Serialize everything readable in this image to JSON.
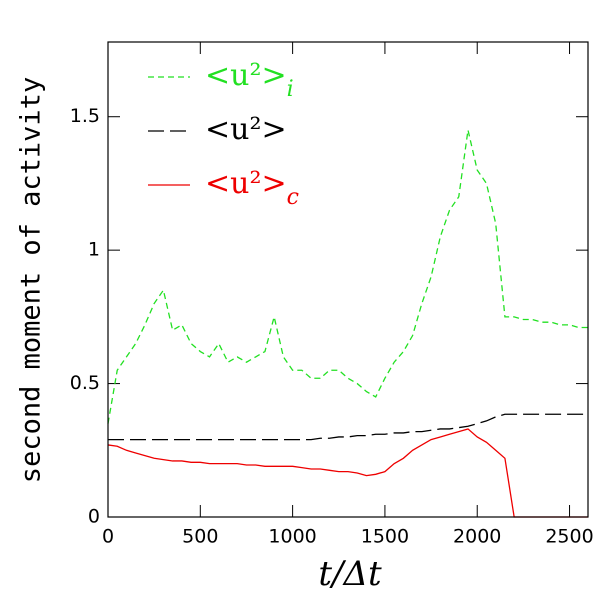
{
  "chart_data": {
    "type": "line",
    "x_label": "t/Δt",
    "y_label": "second moment of activity",
    "x": [
      0,
      50,
      100,
      150,
      200,
      250,
      300,
      350,
      400,
      450,
      500,
      550,
      600,
      650,
      700,
      750,
      800,
      850,
      900,
      950,
      1000,
      1050,
      1100,
      1150,
      1200,
      1250,
      1300,
      1350,
      1400,
      1450,
      1500,
      1550,
      1600,
      1650,
      1700,
      1750,
      1800,
      1850,
      1900,
      1950,
      2000,
      2050,
      2100,
      2150,
      2200,
      2250,
      2300,
      2350,
      2400,
      2450,
      2500,
      2550,
      2600
    ],
    "series": [
      {
        "name": "<u²>i",
        "color": "#22e022",
        "dash": "short",
        "values": [
          0.35,
          0.55,
          0.6,
          0.65,
          0.72,
          0.8,
          0.85,
          0.7,
          0.72,
          0.65,
          0.62,
          0.6,
          0.65,
          0.58,
          0.6,
          0.58,
          0.6,
          0.62,
          0.75,
          0.6,
          0.55,
          0.55,
          0.52,
          0.52,
          0.55,
          0.55,
          0.52,
          0.5,
          0.47,
          0.45,
          0.52,
          0.58,
          0.62,
          0.68,
          0.8,
          0.9,
          1.05,
          1.15,
          1.2,
          1.45,
          1.3,
          1.25,
          1.1,
          0.75,
          0.75,
          0.74,
          0.74,
          0.73,
          0.73,
          0.72,
          0.72,
          0.71,
          0.71
        ]
      },
      {
        "name": "<u²>",
        "color": "#000000",
        "dash": "long",
        "values": [
          0.29,
          0.29,
          0.29,
          0.29,
          0.29,
          0.29,
          0.29,
          0.29,
          0.29,
          0.29,
          0.29,
          0.29,
          0.29,
          0.29,
          0.29,
          0.29,
          0.29,
          0.29,
          0.29,
          0.29,
          0.29,
          0.29,
          0.29,
          0.295,
          0.295,
          0.3,
          0.3,
          0.305,
          0.305,
          0.31,
          0.31,
          0.315,
          0.315,
          0.32,
          0.32,
          0.325,
          0.33,
          0.33,
          0.335,
          0.34,
          0.35,
          0.36,
          0.375,
          0.385,
          0.385,
          0.385,
          0.385,
          0.385,
          0.385,
          0.385,
          0.385,
          0.385,
          0.385
        ]
      },
      {
        "name": "<u²>c",
        "color": "#ee0000",
        "dash": "solid",
        "values": [
          0.27,
          0.265,
          0.25,
          0.24,
          0.23,
          0.22,
          0.215,
          0.21,
          0.21,
          0.205,
          0.205,
          0.2,
          0.2,
          0.2,
          0.2,
          0.195,
          0.195,
          0.19,
          0.19,
          0.19,
          0.19,
          0.185,
          0.18,
          0.18,
          0.175,
          0.17,
          0.17,
          0.165,
          0.155,
          0.16,
          0.17,
          0.2,
          0.22,
          0.25,
          0.27,
          0.29,
          0.3,
          0.31,
          0.32,
          0.33,
          0.3,
          0.28,
          0.25,
          0.22,
          0,
          0,
          0,
          0,
          0,
          0,
          0,
          0,
          0
        ]
      }
    ],
    "xlim": [
      0,
      2600
    ],
    "ylim": [
      0,
      1.78
    ],
    "xticks": [
      0,
      500,
      1000,
      1500,
      2000,
      2500
    ],
    "yticks": [
      0,
      0.5,
      1,
      1.5
    ]
  }
}
